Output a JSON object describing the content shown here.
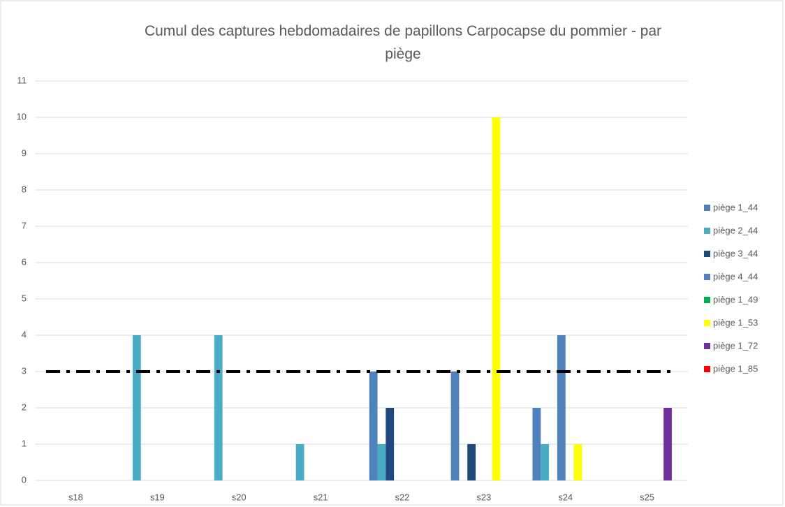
{
  "chart_data": {
    "type": "bar",
    "title": "Cumul des captures hebdomadaires de papillons Carpocapse du pommier - par piège",
    "categories": [
      "s18",
      "s19",
      "s20",
      "s21",
      "s22",
      "s23",
      "s24",
      "s25"
    ],
    "series": [
      {
        "name": "piège 1_44",
        "color": "#4f81bd",
        "values": [
          0,
          0,
          0,
          0,
          3,
          3,
          2,
          0
        ]
      },
      {
        "name": "piège 2_44",
        "color": "#4bacc6",
        "values": [
          0,
          4,
          4,
          1,
          1,
          0,
          1,
          0
        ]
      },
      {
        "name": "piège 3_44",
        "color": "#1f497d",
        "values": [
          0,
          0,
          0,
          0,
          2,
          1,
          0,
          0
        ]
      },
      {
        "name": "piège 4_44",
        "color": "#4f81bd",
        "values": [
          0,
          0,
          0,
          0,
          0,
          0,
          4,
          0
        ]
      },
      {
        "name": "piège 1_49",
        "color": "#00b050",
        "values": [
          0,
          0,
          0,
          0,
          0,
          0,
          0,
          0
        ]
      },
      {
        "name": "piège 1_53",
        "color": "#ffff00",
        "values": [
          0,
          0,
          0,
          0,
          0,
          10,
          1,
          0
        ]
      },
      {
        "name": "piège 1_72",
        "color": "#7030a0",
        "values": [
          0,
          0,
          0,
          0,
          0,
          0,
          0,
          2
        ]
      },
      {
        "name": "piège 1_85",
        "color": "#ff0000",
        "values": [
          0,
          0,
          0,
          0,
          0,
          0,
          0,
          0
        ]
      }
    ],
    "threshold": 3,
    "ylim": [
      0,
      11
    ],
    "yticks": [
      0,
      1,
      2,
      3,
      4,
      5,
      6,
      7,
      8,
      9,
      10,
      11
    ],
    "grid": true,
    "legend": "right"
  }
}
